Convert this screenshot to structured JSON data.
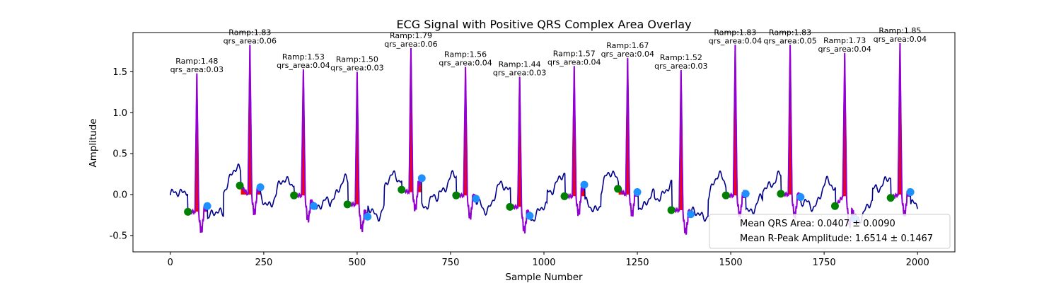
{
  "chart_data": {
    "type": "line",
    "title": "ECG Signal with Positive QRS Complex Area Overlay",
    "xlabel": "Sample Number",
    "ylabel": "Amplitude",
    "xlim": [
      -100,
      2100
    ],
    "ylim": [
      -0.7,
      1.98
    ],
    "xticks": [
      0,
      250,
      500,
      750,
      1000,
      1250,
      1500,
      1750,
      2000
    ],
    "yticks": [
      -0.5,
      0.0,
      0.5,
      1.0,
      1.5
    ],
    "grid": false,
    "legend_position": "lower-right",
    "legend": [
      "Mean QRS Area: 0.0407 ± 0.0090",
      "Mean R-Peak Amplitude: 1.6514 ± 0.1467"
    ],
    "colors": {
      "signal": "#00008b",
      "qrs_segment": "#9400d3",
      "qrs_area_fill": "#ff0000",
      "qrs_onset": "#008000",
      "qrs_offset": "#1e90ff"
    },
    "beats": [
      {
        "r_x": 71,
        "ramp": 1.48,
        "qrs_area": 0.03,
        "onset_x": 47,
        "onset_y": -0.21,
        "offset_x": 99,
        "offset_y": -0.14,
        "baseline": -0.21,
        "ramp_label": "Ramp:1.48",
        "area_label": "qrs_area:0.03"
      },
      {
        "r_x": 213,
        "ramp": 1.83,
        "qrs_area": 0.06,
        "onset_x": 186,
        "onset_y": 0.11,
        "offset_x": 241,
        "offset_y": 0.09,
        "baseline": 0.0,
        "ramp_label": "Ramp:1.83",
        "area_label": "qrs_area:0.06"
      },
      {
        "r_x": 356,
        "ramp": 1.53,
        "qrs_area": 0.04,
        "onset_x": 331,
        "onset_y": -0.01,
        "offset_x": 384,
        "offset_y": -0.14,
        "baseline": -0.01,
        "ramp_label": "Ramp:1.53",
        "area_label": "qrs_area:0.04"
      },
      {
        "r_x": 500,
        "ramp": 1.5,
        "qrs_area": 0.03,
        "onset_x": 474,
        "onset_y": -0.12,
        "offset_x": 528,
        "offset_y": -0.27,
        "baseline": -0.12,
        "ramp_label": "Ramp:1.50",
        "area_label": "qrs_area:0.03"
      },
      {
        "r_x": 644,
        "ramp": 1.79,
        "qrs_area": 0.06,
        "onset_x": 619,
        "onset_y": 0.06,
        "offset_x": 673,
        "offset_y": 0.2,
        "baseline": 0.03,
        "ramp_label": "Ramp:1.79",
        "area_label": "qrs_area:0.06"
      },
      {
        "r_x": 790,
        "ramp": 1.56,
        "qrs_area": 0.04,
        "onset_x": 765,
        "onset_y": -0.01,
        "offset_x": 818,
        "offset_y": -0.05,
        "baseline": -0.01,
        "ramp_label": "Ramp:1.56",
        "area_label": "qrs_area:0.04"
      },
      {
        "r_x": 935,
        "ramp": 1.44,
        "qrs_area": 0.03,
        "onset_x": 909,
        "onset_y": -0.15,
        "offset_x": 962,
        "offset_y": -0.26,
        "baseline": -0.15,
        "ramp_label": "Ramp:1.44",
        "area_label": "qrs_area:0.03"
      },
      {
        "r_x": 1081,
        "ramp": 1.57,
        "qrs_area": 0.04,
        "onset_x": 1055,
        "onset_y": -0.02,
        "offset_x": 1108,
        "offset_y": 0.12,
        "baseline": -0.02,
        "ramp_label": "Ramp:1.57",
        "area_label": "qrs_area:0.04"
      },
      {
        "r_x": 1224,
        "ramp": 1.67,
        "qrs_area": 0.04,
        "onset_x": 1198,
        "onset_y": 0.07,
        "offset_x": 1250,
        "offset_y": 0.03,
        "baseline": 0.0,
        "ramp_label": "Ramp:1.67",
        "area_label": "qrs_area:0.04"
      },
      {
        "r_x": 1367,
        "ramp": 1.52,
        "qrs_area": 0.03,
        "onset_x": 1341,
        "onset_y": -0.19,
        "offset_x": 1393,
        "offset_y": -0.24,
        "baseline": -0.19,
        "ramp_label": "Ramp:1.52",
        "area_label": "qrs_area:0.03"
      },
      {
        "r_x": 1512,
        "ramp": 1.83,
        "qrs_area": 0.04,
        "onset_x": 1487,
        "onset_y": -0.01,
        "offset_x": 1540,
        "offset_y": 0.01,
        "baseline": -0.01,
        "ramp_label": "Ramp:1.83",
        "area_label": "qrs_area:0.04"
      },
      {
        "r_x": 1659,
        "ramp": 1.83,
        "qrs_area": 0.05,
        "onset_x": 1634,
        "onset_y": 0.01,
        "offset_x": 1687,
        "offset_y": -0.03,
        "baseline": 0.0,
        "ramp_label": "Ramp:1.83",
        "area_label": "qrs_area:0.05"
      },
      {
        "r_x": 1805,
        "ramp": 1.73,
        "qrs_area": 0.04,
        "onset_x": 1779,
        "onset_y": -0.14,
        "offset_x": 1832,
        "offset_y": -0.3,
        "baseline": -0.02,
        "ramp_label": "Ramp:1.73",
        "area_label": "qrs_area:0.04"
      },
      {
        "r_x": 1953,
        "ramp": 1.85,
        "qrs_area": 0.04,
        "onset_x": 1928,
        "onset_y": -0.04,
        "offset_x": 1981,
        "offset_y": 0.03,
        "baseline": 0.0,
        "ramp_label": "Ramp:1.85",
        "area_label": "qrs_area:0.04"
      }
    ]
  }
}
